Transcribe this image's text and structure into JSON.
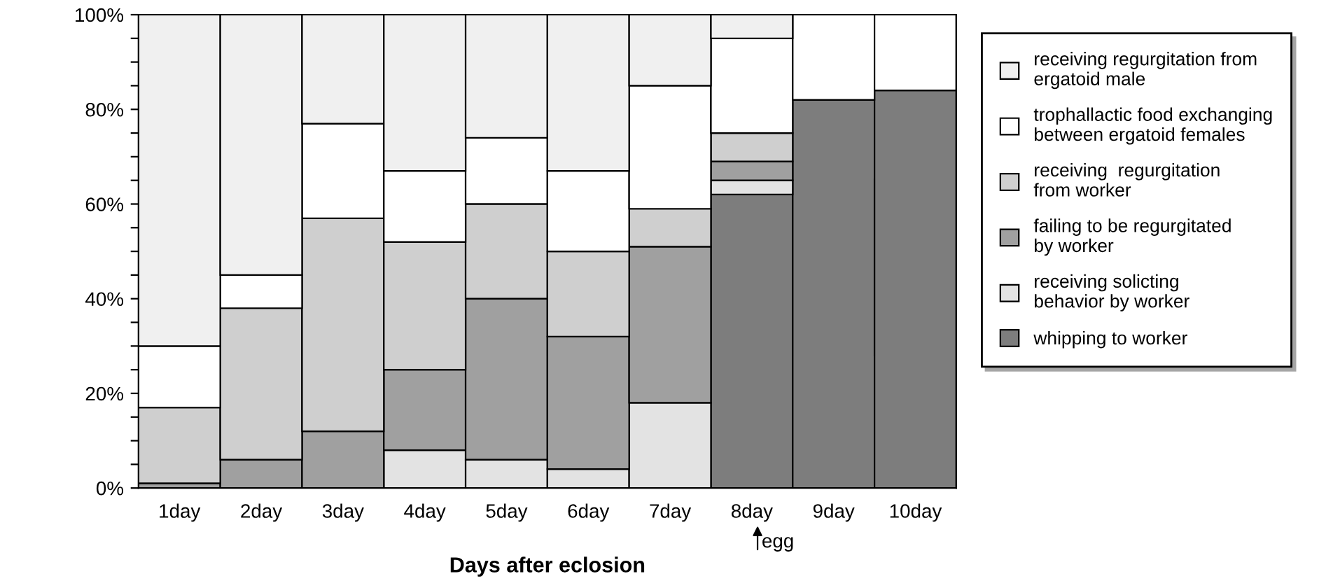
{
  "chart_data": {
    "type": "bar",
    "stacked": true,
    "xlabel": "Days after eclosion",
    "categories": [
      "1day",
      "2day",
      "3day",
      "4day",
      "5day",
      "6day",
      "7day",
      "8day",
      "9day",
      "10day"
    ],
    "series": [
      {
        "name": "whipping to worker",
        "color": "#7d7d7d",
        "values": [
          0,
          0,
          0,
          0,
          0,
          0,
          0,
          62,
          82,
          84
        ]
      },
      {
        "name": "receiving solicting\nbehavior by worker",
        "color": "#e3e3e3",
        "values": [
          0,
          0,
          0,
          8,
          6,
          4,
          18,
          3,
          0,
          0
        ]
      },
      {
        "name": "failing to be regurgitated\nby worker",
        "color": "#a0a0a0",
        "values": [
          1,
          6,
          12,
          17,
          34,
          28,
          33,
          4,
          0,
          0
        ]
      },
      {
        "name": "receiving  regurgitation\nfrom worker",
        "color": "#cfcfcf",
        "values": [
          16,
          32,
          45,
          27,
          20,
          18,
          8,
          6,
          0,
          0
        ]
      },
      {
        "name": "trophallactic food exchanging\nbetween ergatoid females",
        "color": "#ffffff",
        "values": [
          13,
          7,
          20,
          15,
          14,
          17,
          26,
          20,
          18,
          16
        ]
      },
      {
        "name": "receiving regurgitation from\nergatoid male",
        "color": "#f0f0f0",
        "values": [
          70,
          55,
          23,
          33,
          26,
          33,
          15,
          5,
          0,
          0
        ]
      }
    ],
    "ylim": [
      0,
      100
    ],
    "yticks": [
      {
        "value": 0,
        "label": "0%"
      },
      {
        "value": 5,
        "label": null
      },
      {
        "value": 10,
        "label": null
      },
      {
        "value": 15,
        "label": null
      },
      {
        "value": 20,
        "label": "20%"
      },
      {
        "value": 25,
        "label": null
      },
      {
        "value": 30,
        "label": null
      },
      {
        "value": 35,
        "label": null
      },
      {
        "value": 40,
        "label": "40%"
      },
      {
        "value": 45,
        "label": null
      },
      {
        "value": 50,
        "label": null
      },
      {
        "value": 55,
        "label": null
      },
      {
        "value": 60,
        "label": "60%"
      },
      {
        "value": 65,
        "label": null
      },
      {
        "value": 70,
        "label": null
      },
      {
        "value": 75,
        "label": null
      },
      {
        "value": 80,
        "label": "80%"
      },
      {
        "value": 85,
        "label": null
      },
      {
        "value": 90,
        "label": null
      },
      {
        "value": 95,
        "label": null
      },
      {
        "value": 100,
        "label": "100%"
      }
    ],
    "annotations": [
      "egg"
    ],
    "legend": "right",
    "grid": false
  }
}
